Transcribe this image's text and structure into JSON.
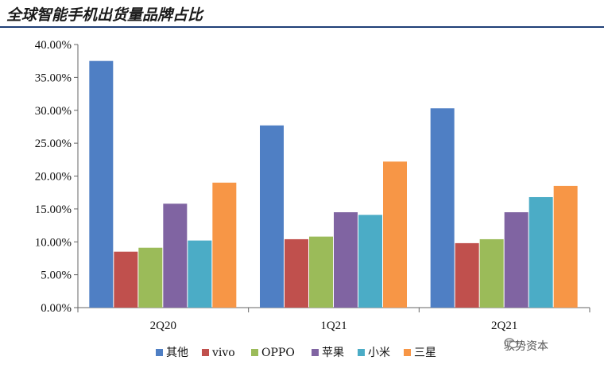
{
  "title": "全球智能手机出货量品牌占比",
  "watermark": "驭势资本",
  "chart_data": {
    "type": "bar",
    "categories": [
      "2Q20",
      "1Q21",
      "2Q21"
    ],
    "series": [
      {
        "name": "其他",
        "color": "#4f7fc4",
        "values": [
          37.5,
          27.7,
          30.3
        ]
      },
      {
        "name": "vivo",
        "color": "#c0504d",
        "values": [
          8.5,
          10.4,
          9.8
        ]
      },
      {
        "name": "OPPO",
        "color": "#9bbb59",
        "values": [
          9.1,
          10.8,
          10.4
        ]
      },
      {
        "name": "苹果",
        "color": "#8064a2",
        "values": [
          15.8,
          14.5,
          14.5
        ]
      },
      {
        "name": "小米",
        "color": "#4bacc6",
        "values": [
          10.2,
          14.1,
          16.8
        ]
      },
      {
        "name": "三星",
        "color": "#f79646",
        "values": [
          19.0,
          22.2,
          18.5
        ]
      }
    ],
    "yticks": [
      "0.00%",
      "5.00%",
      "10.00%",
      "15.00%",
      "20.00%",
      "25.00%",
      "30.00%",
      "35.00%",
      "40.00%"
    ],
    "ylim": [
      0,
      40
    ],
    "legend_position": "bottom"
  }
}
